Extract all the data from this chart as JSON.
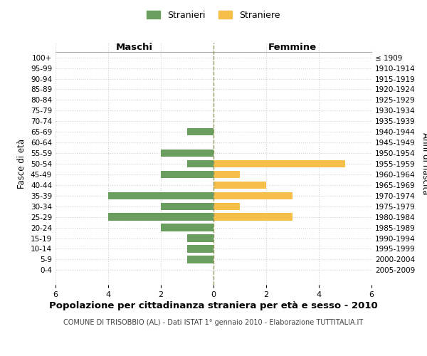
{
  "age_groups": [
    "100+",
    "95-99",
    "90-94",
    "85-89",
    "80-84",
    "75-79",
    "70-74",
    "65-69",
    "60-64",
    "55-59",
    "50-54",
    "45-49",
    "40-44",
    "35-39",
    "30-34",
    "25-29",
    "20-24",
    "15-19",
    "10-14",
    "5-9",
    "0-4"
  ],
  "birth_years": [
    "≤ 1909",
    "1910-1914",
    "1915-1919",
    "1920-1924",
    "1925-1929",
    "1930-1934",
    "1935-1939",
    "1940-1944",
    "1945-1949",
    "1950-1954",
    "1955-1959",
    "1960-1964",
    "1965-1969",
    "1970-1974",
    "1975-1979",
    "1980-1984",
    "1985-1989",
    "1990-1994",
    "1995-1999",
    "2000-2004",
    "2005-2009"
  ],
  "maschi": [
    0,
    0,
    0,
    0,
    0,
    0,
    0,
    1,
    0,
    2,
    1,
    2,
    0,
    4,
    2,
    4,
    2,
    1,
    1,
    1,
    0
  ],
  "femmine": [
    0,
    0,
    0,
    0,
    0,
    0,
    0,
    0,
    0,
    0,
    5,
    1,
    2,
    3,
    1,
    3,
    0,
    0,
    0,
    0,
    0
  ],
  "color_maschi": "#6a9e5e",
  "color_femmine": "#f5bf4a",
  "title": "Popolazione per cittadinanza straniera per età e sesso - 2010",
  "subtitle": "COMUNE DI TRISOBBIO (AL) - Dati ISTAT 1° gennaio 2010 - Elaborazione TUTTITALIA.IT",
  "xlabel_left": "Maschi",
  "xlabel_right": "Femmine",
  "ylabel_left": "Fasce di età",
  "ylabel_right": "Anni di nascita",
  "legend_maschi": "Stranieri",
  "legend_femmine": "Straniere",
  "xlim": 6,
  "background_color": "#ffffff",
  "grid_color": "#d0d0d0"
}
